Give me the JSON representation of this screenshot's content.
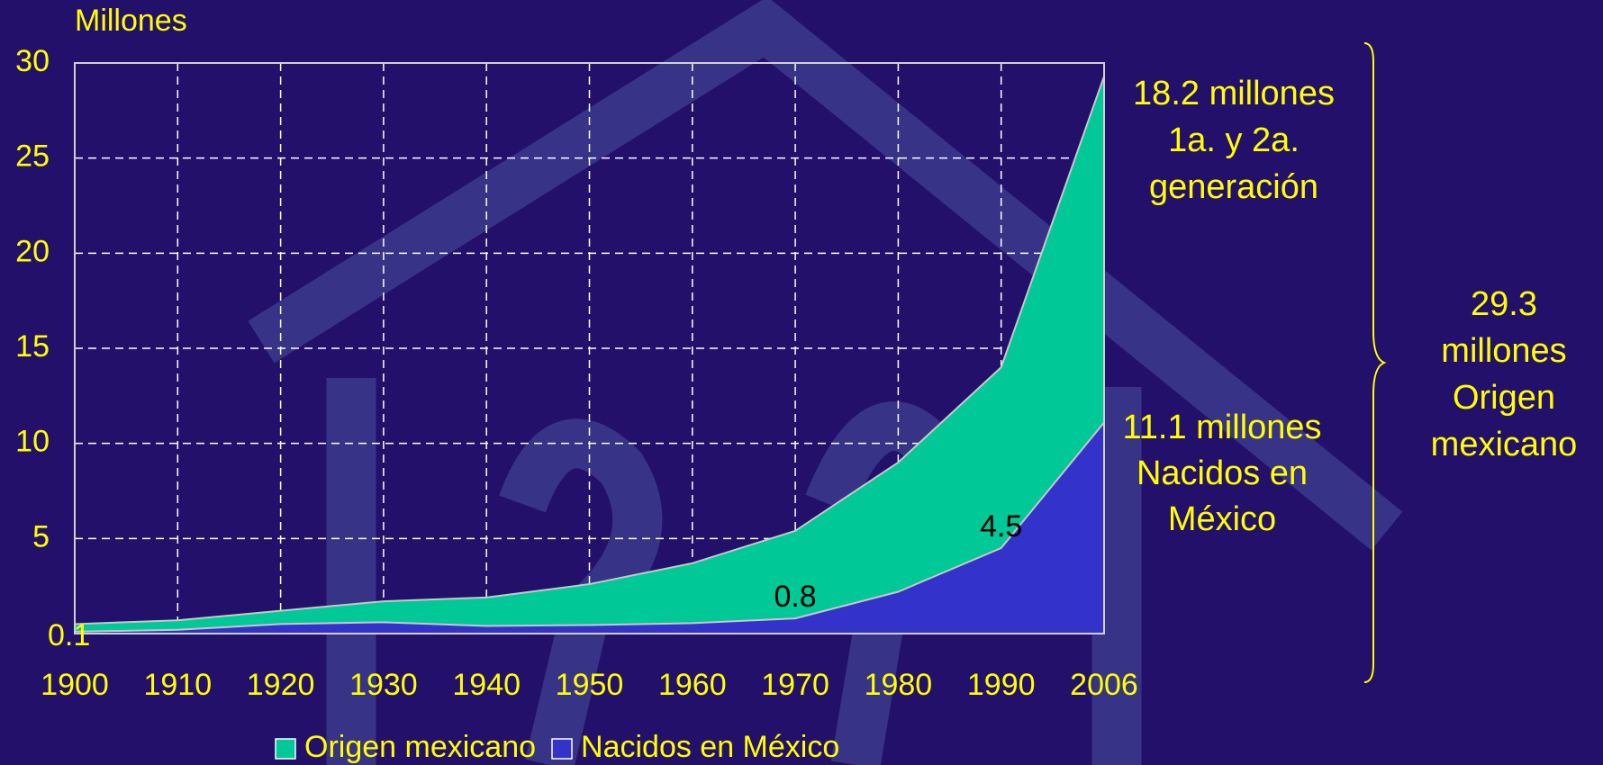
{
  "chart_data": {
    "type": "area",
    "y_label": "Millones",
    "categories": [
      "1900",
      "1910",
      "1920",
      "1930",
      "1940",
      "1950",
      "1960",
      "1970",
      "1980",
      "1990",
      "2006"
    ],
    "series": [
      {
        "name": "Origen mexicano",
        "color": "#00c896",
        "values": [
          0.5,
          0.7,
          1.2,
          1.7,
          1.9,
          2.6,
          3.7,
          5.4,
          9.0,
          14.0,
          29.3
        ]
      },
      {
        "name": "Nacidos en México",
        "color": "#3333cc",
        "values": [
          0.1,
          0.2,
          0.5,
          0.6,
          0.4,
          0.45,
          0.55,
          0.8,
          2.2,
          4.5,
          11.1
        ],
        "value_labels": [
          "0.1",
          null,
          null,
          null,
          null,
          null,
          null,
          "0.8",
          null,
          "4.5",
          null
        ]
      }
    ],
    "ylim": [
      0,
      30
    ],
    "yticks": [
      5,
      10,
      15,
      20,
      25,
      30
    ],
    "grid": true,
    "annotations": [
      [
        "18.2 millones",
        "1a. y 2a.",
        "generación"
      ],
      [
        "11.1 millones",
        "Nacidos en",
        "México"
      ],
      [
        "29.3",
        "millones",
        "Origen",
        "mexicano"
      ]
    ]
  }
}
